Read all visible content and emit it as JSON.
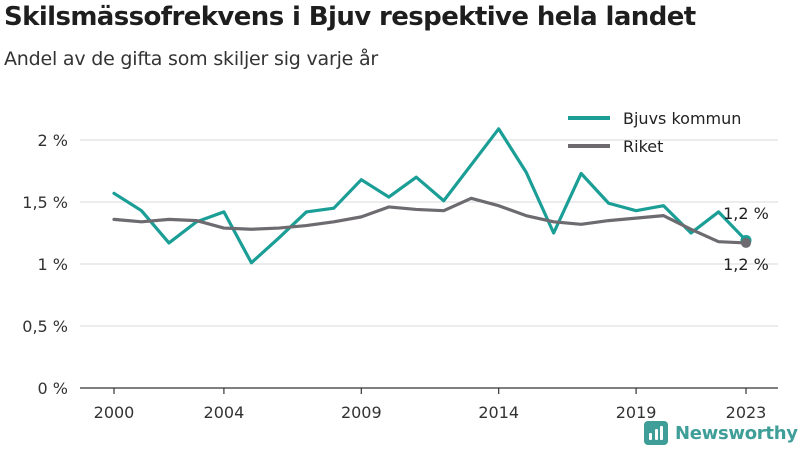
{
  "chart_data": {
    "type": "line",
    "title": "Skilsmässofrekvens i Bjuv respektive hela landet",
    "subtitle": "Andel av de gifta som skiljer sig varje år",
    "xlabel": "",
    "ylabel": "",
    "x": [
      2000,
      2001,
      2002,
      2003,
      2004,
      2005,
      2006,
      2007,
      2008,
      2009,
      2010,
      2011,
      2012,
      2013,
      2014,
      2015,
      2016,
      2017,
      2018,
      2019,
      2020,
      2021,
      2022,
      2023
    ],
    "x_ticks": [
      2000,
      2004,
      2009,
      2014,
      2019,
      2023
    ],
    "y_ticks": [
      0,
      0.5,
      1,
      1.5,
      2
    ],
    "y_tick_labels": [
      "0 %",
      "0,5 %",
      "1 %",
      "1,5 %",
      "2 %"
    ],
    "ylim": [
      0,
      2.2
    ],
    "grid": "horizontal",
    "legend_position": "top-right",
    "series": [
      {
        "name": "Bjuvs kommun",
        "color": "#1a9e96",
        "values": [
          1.57,
          1.43,
          1.17,
          1.34,
          1.42,
          1.01,
          1.21,
          1.42,
          1.45,
          1.68,
          1.54,
          1.7,
          1.51,
          1.8,
          2.09,
          1.74,
          1.25,
          1.73,
          1.49,
          1.43,
          1.47,
          1.25,
          1.42,
          1.19
        ],
        "end_label": "1,2 %"
      },
      {
        "name": "Riket",
        "color": "#6d6b70",
        "values": [
          1.36,
          1.34,
          1.36,
          1.35,
          1.29,
          1.28,
          1.29,
          1.31,
          1.34,
          1.38,
          1.46,
          1.44,
          1.43,
          1.53,
          1.47,
          1.39,
          1.34,
          1.32,
          1.35,
          1.37,
          1.39,
          1.28,
          1.18,
          1.17
        ],
        "end_label": "1,2 %"
      }
    ]
  },
  "branding": {
    "logo_text": "Newsworthy"
  }
}
